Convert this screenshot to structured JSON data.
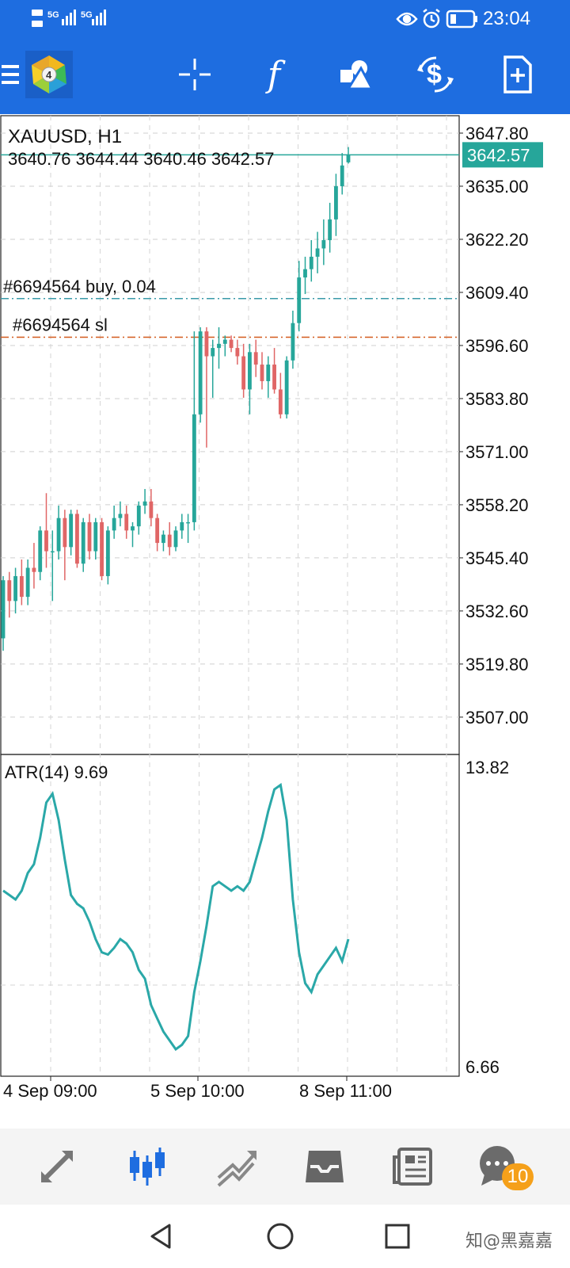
{
  "status_bar": {
    "signal_1": "5G",
    "signal_2": "5G",
    "time": "23:04",
    "icons": [
      "eye-icon",
      "alarm-icon",
      "battery-icon"
    ]
  },
  "toolbar": {
    "logo": "metatrader-logo",
    "buttons": [
      "menu-icon",
      "crosshair-icon",
      "indicators-icon",
      "objects-icon",
      "symbol-icon",
      "new-order-icon"
    ],
    "indicator_glyph": "f"
  },
  "chart": {
    "symbol_label": "XAUUSD, H1",
    "ohlc": "3640.76 3644.44 3640.46 3642.57",
    "current_price": "3642.57",
    "price_ticks": [
      "3647.80",
      "3635.00",
      "3622.20",
      "3609.40",
      "3596.60",
      "3583.80",
      "3571.00",
      "3558.20",
      "3545.40",
      "3532.60",
      "3519.80",
      "3507.00"
    ],
    "order_line_label": "#6694564 buy, 0.04",
    "sl_line_label": "#6694564 sl",
    "order_price": 3607.9,
    "sl_price": 3598.6,
    "up_color": "#26a69a",
    "down_color": "#e06666",
    "order_line_color": "#3a9aa8",
    "sl_line_color": "#d35a1c"
  },
  "indicator": {
    "label": "ATR(14) 9.69",
    "max_label": "13.82",
    "min_label": "6.66",
    "line_color": "#2aa8a8"
  },
  "time_axis": {
    "labels": [
      "4 Sep 09:00",
      "5 Sep 10:00",
      "8 Sep 11:00"
    ]
  },
  "chart_data": {
    "type": "candlestick",
    "symbol": "XAUUSD",
    "timeframe": "H1",
    "ylim": [
      3498.0,
      3652.0
    ],
    "candles": [
      [
        3526,
        3541,
        3523,
        3540
      ],
      [
        3540,
        3542,
        3531,
        3535
      ],
      [
        3535,
        3543,
        3532,
        3541
      ],
      [
        3541,
        3545,
        3534,
        3536
      ],
      [
        3536,
        3545,
        3534,
        3543
      ],
      [
        3543,
        3549,
        3538,
        3542
      ],
      [
        3542,
        3553,
        3540,
        3552
      ],
      [
        3552,
        3561,
        3543,
        3547
      ],
      [
        3547,
        3552,
        3535,
        3547
      ],
      [
        3547,
        3558,
        3545,
        3555
      ],
      [
        3555,
        3557,
        3540,
        3548
      ],
      [
        3548,
        3557,
        3546,
        3556
      ],
      [
        3556,
        3557,
        3543,
        3544
      ],
      [
        3544,
        3555,
        3542,
        3554
      ],
      [
        3554,
        3556,
        3545,
        3547
      ],
      [
        3547,
        3555,
        3545,
        3554
      ],
      [
        3554,
        3555,
        3540,
        3541
      ],
      [
        3541,
        3553,
        3539,
        3552
      ],
      [
        3552,
        3558,
        3550,
        3555
      ],
      [
        3555,
        3559,
        3553,
        3556
      ],
      [
        3556,
        3558,
        3550,
        3552
      ],
      [
        3552,
        3554,
        3548,
        3553
      ],
      [
        3553,
        3559,
        3551,
        3558
      ],
      [
        3558,
        3562,
        3556,
        3559
      ],
      [
        3559,
        3562,
        3553,
        3555
      ],
      [
        3555,
        3556,
        3547,
        3549
      ],
      [
        3549,
        3552,
        3547,
        3551
      ],
      [
        3551,
        3554,
        3546,
        3548
      ],
      [
        3548,
        3553,
        3547,
        3552
      ],
      [
        3552,
        3556,
        3550,
        3554
      ],
      [
        3554,
        3556,
        3549,
        3554
      ],
      [
        3554,
        3600,
        3552,
        3580
      ],
      [
        3580,
        3601,
        3578,
        3600
      ],
      [
        3600,
        3601,
        3572,
        3594
      ],
      [
        3594,
        3598,
        3584,
        3596
      ],
      [
        3596,
        3601,
        3591,
        3597
      ],
      [
        3597,
        3599,
        3594,
        3598
      ],
      [
        3598,
        3599,
        3595,
        3596
      ],
      [
        3596,
        3598,
        3592,
        3594
      ],
      [
        3594,
        3597,
        3584,
        3586
      ],
      [
        3586,
        3597,
        3580,
        3595
      ],
      [
        3595,
        3598,
        3589,
        3592
      ],
      [
        3592,
        3595,
        3586,
        3588
      ],
      [
        3588,
        3594,
        3584,
        3592
      ],
      [
        3592,
        3596,
        3585,
        3586
      ],
      [
        3586,
        3590,
        3579,
        3580
      ],
      [
        3580,
        3594,
        3579,
        3593
      ],
      [
        3593,
        3605,
        3591,
        3602
      ],
      [
        3602,
        3617,
        3600,
        3613
      ],
      [
        3613,
        3618,
        3609,
        3615
      ],
      [
        3615,
        3622,
        3612,
        3618
      ],
      [
        3618,
        3624,
        3614,
        3620
      ],
      [
        3620,
        3627,
        3616,
        3622
      ],
      [
        3622,
        3631,
        3619,
        3627
      ],
      [
        3627,
        3638,
        3623,
        3635
      ],
      [
        3635,
        3643,
        3633,
        3640
      ],
      [
        3640.76,
        3644.44,
        3640.46,
        3642.57
      ]
    ],
    "atr_values": [
      10.8,
      10.7,
      10.6,
      10.8,
      11.2,
      11.4,
      12.0,
      12.8,
      13.0,
      12.4,
      11.5,
      10.7,
      10.5,
      10.4,
      10.1,
      9.7,
      9.4,
      9.35,
      9.5,
      9.7,
      9.6,
      9.4,
      9.0,
      8.8,
      8.2,
      7.9,
      7.6,
      7.4,
      7.2,
      7.3,
      7.5,
      8.5,
      9.2,
      10.0,
      10.9,
      11.0,
      10.9,
      10.8,
      10.9,
      10.8,
      11.0,
      11.5,
      12.0,
      12.6,
      13.1,
      13.2,
      12.4,
      10.6,
      9.4,
      8.7,
      8.5,
      8.9,
      9.1,
      9.3,
      9.5,
      9.2,
      9.7
    ],
    "atr_ylim": [
      6.66,
      13.82
    ]
  }
}
